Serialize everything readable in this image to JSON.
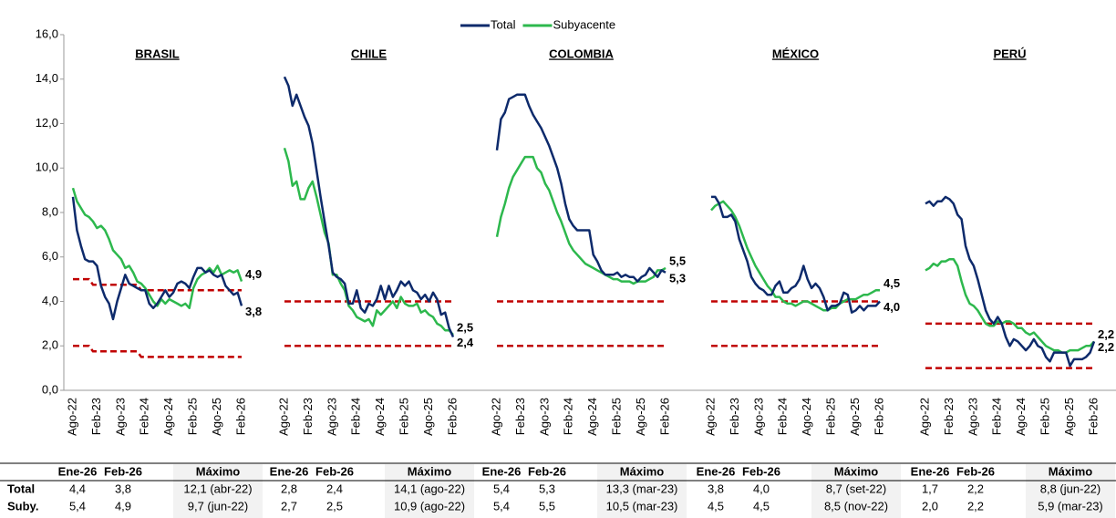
{
  "chart_data": {
    "type": "line",
    "ylim": [
      0,
      16
    ],
    "yticks": [
      {
        "value": 0,
        "label": "0,0"
      },
      {
        "value": 2,
        "label": "2,0"
      },
      {
        "value": 4,
        "label": "4,0"
      },
      {
        "value": 6,
        "label": "6,0"
      },
      {
        "value": 8,
        "label": "8,0"
      },
      {
        "value": 10,
        "label": "10,0"
      },
      {
        "value": 12,
        "label": "12,0"
      },
      {
        "value": 14,
        "label": "14,0"
      },
      {
        "value": 16,
        "label": "16,0"
      }
    ],
    "target_color": "#c00000",
    "panels": [
      {
        "title": "BRASIL",
        "categories": [
          "Ago-22",
          null,
          null,
          null,
          null,
          null,
          "Feb-23",
          null,
          null,
          null,
          null,
          null,
          "Ago-23",
          null,
          null,
          null,
          null,
          null,
          "Feb-24",
          null,
          null,
          null,
          null,
          null,
          "Ago-24",
          null,
          null,
          null,
          null,
          null,
          "Feb-25",
          null,
          null,
          null,
          null,
          null,
          "Ago-25",
          null,
          null,
          null,
          null,
          null,
          "Feb-26"
        ],
        "series": [
          {
            "name": "Total",
            "color": "#0d2a6b",
            "end_label": "3,8",
            "values": [
              8.7,
              7.2,
              6.5,
              5.9,
              5.8,
              5.8,
              5.6,
              4.7,
              4.2,
              3.9,
              3.2,
              4.0,
              4.6,
              5.2,
              4.8,
              4.7,
              4.6,
              4.5,
              4.5,
              3.9,
              3.7,
              3.9,
              4.2,
              4.5,
              4.2,
              4.4,
              4.8,
              4.9,
              4.8,
              4.6,
              5.1,
              5.5,
              5.5,
              5.3,
              5.4,
              5.2,
              5.1,
              5.2,
              4.7,
              4.5,
              4.3,
              4.4,
              3.8
            ]
          },
          {
            "name": "Subyacente",
            "color": "#2db84d",
            "end_label": "4,9",
            "values": [
              9.1,
              8.5,
              8.2,
              7.9,
              7.8,
              7.6,
              7.3,
              7.4,
              7.2,
              6.8,
              6.3,
              6.1,
              5.9,
              5.5,
              5.6,
              5.3,
              4.9,
              4.8,
              4.6,
              4.3,
              4.0,
              3.8,
              4.1,
              3.9,
              4.1,
              4.0,
              3.9,
              3.8,
              3.9,
              3.7,
              4.6,
              5.0,
              5.2,
              5.3,
              5.5,
              5.3,
              5.6,
              5.2,
              5.3,
              5.4,
              5.3,
              5.4,
              4.9
            ]
          }
        ],
        "targets": [
          [
            5,
            5,
            5,
            5,
            5,
            4.75,
            4.75,
            4.75,
            4.75,
            4.75,
            4.75,
            4.75,
            4.75,
            4.75,
            4.75,
            4.75,
            4.75,
            4.5,
            4.5,
            4.5,
            4.5,
            4.5,
            4.5,
            4.5,
            4.5,
            4.5,
            4.5,
            4.5,
            4.5,
            4.5,
            4.5,
            4.5,
            4.5,
            4.5,
            4.5,
            4.5,
            4.5,
            4.5,
            4.5,
            4.5,
            4.5,
            4.5,
            4.5
          ],
          [
            2,
            2,
            2,
            2,
            2,
            1.75,
            1.75,
            1.75,
            1.75,
            1.75,
            1.75,
            1.75,
            1.75,
            1.75,
            1.75,
            1.75,
            1.75,
            1.5,
            1.5,
            1.5,
            1.5,
            1.5,
            1.5,
            1.5,
            1.5,
            1.5,
            1.5,
            1.5,
            1.5,
            1.5,
            1.5,
            1.5,
            1.5,
            1.5,
            1.5,
            1.5,
            1.5,
            1.5,
            1.5,
            1.5,
            1.5,
            1.5,
            1.5
          ]
        ]
      },
      {
        "title": "CHILE",
        "categories": [
          "Ago-22",
          null,
          null,
          null,
          null,
          null,
          "Feb-23",
          null,
          null,
          null,
          null,
          null,
          "Ago-23",
          null,
          null,
          null,
          null,
          null,
          "Feb-24",
          null,
          null,
          null,
          null,
          null,
          "Ago-24",
          null,
          null,
          null,
          null,
          null,
          "Feb-25",
          null,
          null,
          null,
          null,
          null,
          "Ago-25",
          null,
          null,
          null,
          null,
          null,
          "Feb-26"
        ],
        "series": [
          {
            "name": "Total",
            "color": "#0d2a6b",
            "end_label": "2,4",
            "values": [
              14.1,
              13.7,
              12.8,
              13.3,
              12.8,
              12.3,
              11.9,
              11.1,
              9.9,
              8.7,
              7.6,
              6.5,
              5.3,
              5.1,
              5.0,
              4.8,
              3.9,
              3.9,
              4.5,
              3.7,
              3.5,
              3.9,
              3.8,
              4.1,
              4.7,
              4.1,
              4.7,
              4.2,
              4.5,
              4.9,
              4.7,
              4.9,
              4.5,
              4.4,
              4.1,
              4.3,
              4.0,
              4.4,
              4.1,
              3.4,
              3.5,
              2.8,
              2.4
            ]
          },
          {
            "name": "Subyacente",
            "color": "#2db84d",
            "end_label": "2,5",
            "values": [
              10.9,
              10.3,
              9.2,
              9.4,
              8.6,
              8.6,
              9.1,
              9.4,
              8.7,
              7.9,
              7.1,
              6.6,
              5.2,
              5.2,
              4.8,
              4.5,
              3.8,
              3.6,
              3.3,
              3.2,
              3.1,
              3.2,
              2.9,
              3.6,
              3.4,
              3.6,
              3.8,
              4.0,
              3.7,
              4.2,
              3.9,
              3.8,
              3.8,
              3.9,
              3.5,
              3.6,
              3.4,
              3.3,
              3.0,
              2.9,
              2.7,
              2.7,
              2.5
            ]
          }
        ],
        "targets": [
          4,
          2
        ]
      },
      {
        "title": "COLOMBIA",
        "categories": [
          "Ago-22",
          null,
          null,
          null,
          null,
          null,
          "Feb-23",
          null,
          null,
          null,
          null,
          null,
          "Ago-23",
          null,
          null,
          null,
          null,
          null,
          "Feb-24",
          null,
          null,
          null,
          null,
          null,
          "Ago-24",
          null,
          null,
          null,
          null,
          null,
          "Feb-25",
          null,
          null,
          null,
          null,
          null,
          "Ago-25",
          null,
          null,
          null,
          null,
          null,
          "Feb-26"
        ],
        "series": [
          {
            "name": "Total",
            "color": "#0d2a6b",
            "end_label": "5,3",
            "values": [
              10.8,
              12.2,
              12.5,
              13.1,
              13.2,
              13.3,
              13.3,
              13.3,
              12.8,
              12.4,
              12.1,
              11.8,
              11.4,
              11.0,
              10.5,
              10.0,
              9.3,
              8.4,
              7.7,
              7.4,
              7.2,
              7.2,
              7.2,
              7.2,
              6.1,
              5.8,
              5.4,
              5.2,
              5.2,
              5.2,
              5.3,
              5.1,
              5.2,
              5.1,
              5.1,
              4.9,
              5.1,
              5.2,
              5.5,
              5.3,
              5.1,
              5.4,
              5.3
            ]
          },
          {
            "name": "Subyacente",
            "color": "#2db84d",
            "end_label": "5,5",
            "values": [
              6.9,
              7.8,
              8.4,
              9.1,
              9.6,
              9.9,
              10.2,
              10.5,
              10.5,
              10.5,
              10.0,
              9.8,
              9.3,
              9.0,
              8.5,
              8.0,
              7.6,
              7.1,
              6.6,
              6.3,
              6.1,
              5.9,
              5.7,
              5.6,
              5.5,
              5.4,
              5.3,
              5.2,
              5.1,
              5.0,
              5.0,
              4.9,
              4.9,
              4.9,
              4.8,
              4.9,
              4.9,
              4.9,
              5.0,
              5.1,
              5.4,
              5.4,
              5.5
            ]
          }
        ],
        "targets": [
          4,
          2
        ]
      },
      {
        "title": "MÉXICO",
        "categories": [
          "Ago-22",
          null,
          null,
          null,
          null,
          null,
          "Feb-23",
          null,
          null,
          null,
          null,
          null,
          "Ago-23",
          null,
          null,
          null,
          null,
          null,
          "Feb-24",
          null,
          null,
          null,
          null,
          null,
          "Ago-24",
          null,
          null,
          null,
          null,
          null,
          "Feb-25",
          null,
          null,
          null,
          null,
          null,
          "Ago-25",
          null,
          null,
          null,
          null,
          null,
          "Feb-26"
        ],
        "series": [
          {
            "name": "Total",
            "color": "#0d2a6b",
            "end_label": "4,0",
            "values": [
              8.7,
              8.7,
              8.4,
              7.8,
              7.8,
              7.9,
              7.6,
              6.8,
              6.3,
              5.8,
              5.1,
              4.8,
              4.6,
              4.5,
              4.3,
              4.3,
              4.7,
              4.9,
              4.4,
              4.4,
              4.6,
              4.7,
              5.0,
              5.6,
              5.0,
              4.6,
              4.8,
              4.6,
              4.2,
              3.6,
              3.8,
              3.8,
              3.9,
              4.4,
              4.3,
              3.5,
              3.6,
              3.8,
              3.6,
              3.8,
              3.8,
              3.8,
              4.0
            ]
          },
          {
            "name": "Subyacente",
            "color": "#2db84d",
            "end_label": "4,5",
            "values": [
              8.1,
              8.3,
              8.4,
              8.5,
              8.3,
              8.1,
              7.8,
              7.4,
              6.9,
              6.4,
              6.0,
              5.6,
              5.3,
              5.0,
              4.7,
              4.5,
              4.2,
              4.2,
              4.0,
              3.9,
              3.9,
              3.8,
              3.9,
              4.0,
              4.0,
              3.9,
              3.8,
              3.7,
              3.6,
              3.6,
              3.7,
              3.7,
              3.9,
              4.0,
              4.1,
              4.1,
              4.1,
              4.2,
              4.3,
              4.3,
              4.4,
              4.5,
              4.5
            ]
          }
        ],
        "targets": [
          4,
          2
        ]
      },
      {
        "title": "PERÚ",
        "categories": [
          "Ago-22",
          null,
          null,
          null,
          null,
          null,
          "Feb-23",
          null,
          null,
          null,
          null,
          null,
          "Ago-23",
          null,
          null,
          null,
          null,
          null,
          "Feb-24",
          null,
          null,
          null,
          null,
          null,
          "Ago-24",
          null,
          null,
          null,
          null,
          null,
          "Feb-25",
          null,
          null,
          null,
          null,
          null,
          "Ago-25",
          null,
          null,
          null,
          null,
          null,
          "Feb-26"
        ],
        "series": [
          {
            "name": "Total",
            "color": "#0d2a6b",
            "end_label": "2,2",
            "values": [
              8.4,
              8.5,
              8.3,
              8.5,
              8.5,
              8.7,
              8.6,
              8.4,
              7.9,
              7.7,
              6.5,
              5.9,
              5.6,
              5.0,
              4.3,
              3.6,
              3.2,
              3.0,
              3.3,
              3.0,
              2.4,
              2.0,
              2.3,
              2.2,
              2.0,
              1.8,
              2.0,
              2.3,
              2.0,
              1.9,
              1.5,
              1.3,
              1.7,
              1.7,
              1.7,
              1.7,
              1.1,
              1.4,
              1.4,
              1.4,
              1.5,
              1.7,
              2.2
            ]
          },
          {
            "name": "Subyacente",
            "color": "#2db84d",
            "end_label": "2,2",
            "values": [
              5.4,
              5.5,
              5.7,
              5.6,
              5.8,
              5.8,
              5.9,
              5.9,
              5.6,
              4.9,
              4.3,
              3.9,
              3.8,
              3.6,
              3.3,
              3.0,
              2.9,
              2.9,
              3.1,
              3.0,
              3.1,
              3.1,
              3.0,
              2.8,
              2.8,
              2.6,
              2.5,
              2.6,
              2.4,
              2.2,
              2.0,
              1.9,
              1.8,
              1.8,
              1.7,
              1.7,
              1.8,
              1.8,
              1.8,
              1.9,
              2.0,
              2.0,
              2.2
            ]
          }
        ],
        "targets": [
          3,
          1
        ]
      }
    ]
  },
  "table": {
    "row_labels": [
      "Total",
      "Suby."
    ],
    "groups": [
      {
        "headers": [
          "Ene-26",
          "Feb-26",
          "Máximo"
        ],
        "rows": [
          [
            "4,4",
            "3,8",
            "12,1 (abr-22)"
          ],
          [
            "5,4",
            "4,9",
            "9,7 (jun-22)"
          ]
        ]
      },
      {
        "headers": [
          "Ene-26",
          "Feb-26",
          "Máximo"
        ],
        "rows": [
          [
            "2,8",
            "2,4",
            "14,1 (ago-22)"
          ],
          [
            "2,7",
            "2,5",
            "10,9 (ago-22)"
          ]
        ]
      },
      {
        "headers": [
          "Ene-26",
          "Feb-26",
          "Máximo"
        ],
        "rows": [
          [
            "5,4",
            "5,3",
            "13,3 (mar-23)"
          ],
          [
            "5,4",
            "5,5",
            "10,5 (mar-23)"
          ]
        ]
      },
      {
        "headers": [
          "Ene-26",
          "Feb-26",
          "Máximo"
        ],
        "rows": [
          [
            "3,8",
            "4,0",
            "8,7 (set-22)"
          ],
          [
            "4,5",
            "4,5",
            "8,5 (nov-22)"
          ]
        ]
      },
      {
        "headers": [
          "Ene-26",
          "Feb-26",
          "Máximo"
        ],
        "rows": [
          [
            "1,7",
            "2,2",
            "8,8 (jun-22)"
          ],
          [
            "2,0",
            "2,2",
            "5,9 (mar-23)"
          ]
        ]
      }
    ]
  }
}
